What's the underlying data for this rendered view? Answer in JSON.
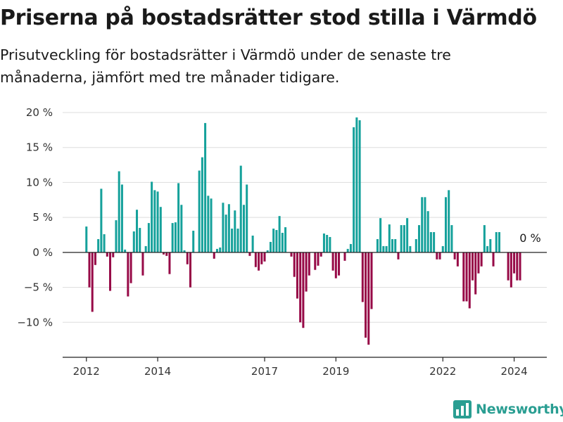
{
  "title": "Priserna på bostadsrätter stod stilla i Värmdö",
  "subtitle": "Prisutveckling för bostadsrätter i Värmdö under de senaste tre månaderna, jämfört med tre månader tidigare.",
  "logo": {
    "text": "Newsworthy",
    "icon": "bar-chart-logo-icon"
  },
  "colors": {
    "positive": "#15a19b",
    "negative": "#970a47",
    "grid": "#dddddd",
    "axis": "#222222"
  },
  "chart_data": {
    "type": "bar",
    "title": "Priserna på bostadsrätter stod stilla i Värmdö",
    "xlabel": "",
    "ylabel": "",
    "y_unit": "%",
    "ylim": [
      -15,
      20
    ],
    "xlim": [
      "2011-05",
      "2024-12"
    ],
    "y_ticks": [
      {
        "value": 20,
        "label": "20 %"
      },
      {
        "value": 15,
        "label": "15 %"
      },
      {
        "value": 10,
        "label": "10 %"
      },
      {
        "value": 5,
        "label": "5 %"
      },
      {
        "value": 0,
        "label": "0 %"
      },
      {
        "value": -5,
        "label": "−5 %"
      },
      {
        "value": -10,
        "label": "−10 %"
      }
    ],
    "x_ticks": [
      {
        "value": "2012-01",
        "label": "2012"
      },
      {
        "value": "2014-01",
        "label": "2014"
      },
      {
        "value": "2017-01",
        "label": "2017"
      },
      {
        "value": "2019-01",
        "label": "2019"
      },
      {
        "value": "2022-01",
        "label": "2022"
      },
      {
        "value": "2024-01",
        "label": "2024"
      }
    ],
    "grid": true,
    "last_value_label": "0 %",
    "series": [
      {
        "start": "2012-01",
        "values": [
          3.7,
          -5,
          -8.5,
          -1.8,
          1.9,
          9.1,
          2.6,
          -0.6,
          -5.5,
          -0.7,
          4.6,
          11.6,
          9.7,
          0.4,
          -6.3,
          -4.4,
          3,
          6.1,
          3.5,
          -3.3,
          0.9,
          4.2,
          10.1,
          8.9,
          8.7,
          6.5,
          -0.3,
          -0.5,
          -3.1,
          4.2,
          4.3,
          9.9,
          6.8,
          0.3,
          -1.7,
          -5,
          3.1,
          0,
          11.7,
          13.6,
          18.5,
          8.1,
          7.7,
          -0.9,
          0.5,
          0.7,
          7.1,
          5.4,
          6.9,
          3.4,
          6,
          3.4,
          12.4,
          6.8,
          9.7,
          -0.5,
          2.4,
          -2.1,
          -2.6,
          -1.7,
          -1.3,
          0.3,
          1.5,
          3.4,
          3.2,
          5.2,
          2.8,
          3.6,
          0,
          -0.6,
          -3.5,
          -6.6,
          -10,
          -10.8,
          -5.6,
          -3.3,
          0,
          -2.5,
          -1.9,
          -0.6,
          2.7,
          2.5,
          2.2,
          -2.6,
          -3.7,
          -3.3,
          0,
          -1.2,
          0.5,
          1.2,
          17.9,
          19.3,
          18.9,
          -7.1,
          -12.2,
          -13.2,
          -8.1,
          0,
          1.9,
          4.9,
          0.9,
          0.9,
          4,
          1.9,
          1.9,
          -1,
          3.9,
          3.9,
          4.9,
          0.9,
          0,
          1.9,
          3.9,
          7.9,
          7.9,
          5.9,
          2.9,
          2.9,
          -1,
          -1,
          0.9,
          7.9,
          8.9,
          3.9,
          -1,
          -2,
          0,
          -7,
          -7,
          -8,
          -4,
          -6,
          -3,
          -2,
          3.9,
          0.9,
          1.9,
          -2,
          2.9,
          2.9,
          0,
          0,
          -4,
          -5,
          -3,
          -4,
          -4,
          0
        ]
      }
    ]
  }
}
